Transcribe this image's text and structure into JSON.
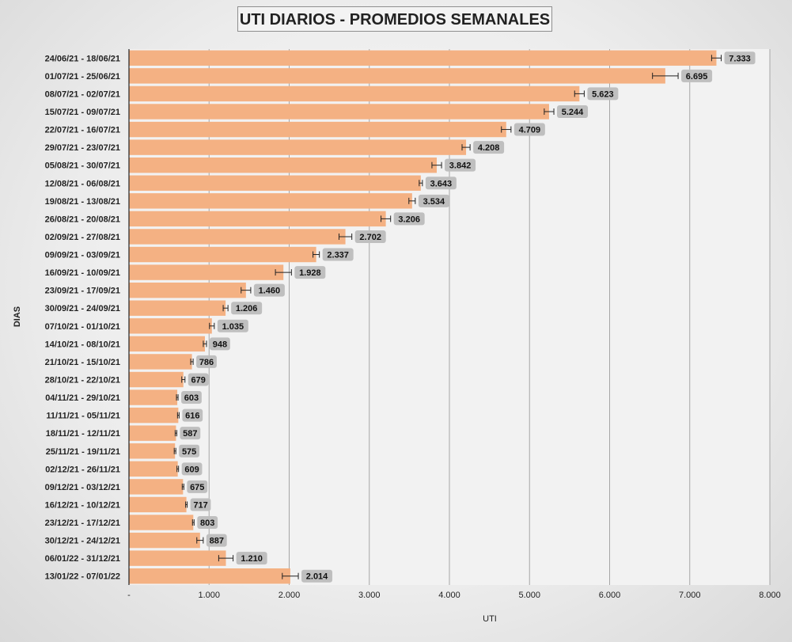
{
  "chart_data": {
    "type": "bar",
    "orientation": "horizontal",
    "title": "UTI DIARIOS - PROMEDIOS SEMANALES",
    "xlabel": "UTI",
    "ylabel": "DIAS",
    "xlim": [
      0,
      8000
    ],
    "x_ticks": [
      "-",
      "1.000",
      "2.000",
      "3.000",
      "4.000",
      "5.000",
      "6.000",
      "7.000",
      "8.000"
    ],
    "grid": true,
    "bar_color": "#f4b183",
    "label_bg_color": "#bfbfbf",
    "categories": [
      "24/06/21 - 18/06/21",
      "01/07/21 - 25/06/21",
      "08/07/21 - 02/07/21",
      "15/07/21 - 09/07/21",
      "22/07/21 - 16/07/21",
      "29/07/21 - 23/07/21",
      "05/08/21 - 30/07/21",
      "12/08/21 - 06/08/21",
      "19/08/21 - 13/08/21",
      "26/08/21 - 20/08/21",
      "02/09/21 - 27/08/21",
      "09/09/21 - 03/09/21",
      "16/09/21 - 10/09/21",
      "23/09/21 - 17/09/21",
      "30/09/21 - 24/09/21",
      "07/10/21 - 01/10/21",
      "14/10/21 - 08/10/21",
      "21/10/21 - 15/10/21",
      "28/10/21 - 22/10/21",
      "04/11/21 - 29/10/21",
      "11/11/21 - 05/11/21",
      "18/11/21 - 12/11/21",
      "25/11/21 - 19/11/21",
      "02/12/21 - 26/11/21",
      "09/12/21 - 03/12/21",
      "16/12/21 - 10/12/21",
      "23/12/21 - 17/12/21",
      "30/12/21 - 24/12/21",
      "06/01/22 - 31/12/21",
      "13/01/22 - 07/01/22"
    ],
    "values": [
      7333,
      6695,
      5623,
      5244,
      4709,
      4208,
      3842,
      3643,
      3534,
      3206,
      2702,
      2337,
      1928,
      1460,
      1206,
      1035,
      948,
      786,
      679,
      603,
      616,
      587,
      575,
      609,
      675,
      717,
      803,
      887,
      1210,
      2014
    ],
    "value_labels": [
      "7.333",
      "6.695",
      "5.623",
      "5.244",
      "4.709",
      "4.208",
      "3.842",
      "3.643",
      "3.534",
      "3.206",
      "2.702",
      "2.337",
      "1.928",
      "1.460",
      "1.206",
      "1.035",
      "948",
      "786",
      "679",
      "603",
      "616",
      "587",
      "575",
      "609",
      "675",
      "717",
      "803",
      "887",
      "1.210",
      "2.014"
    ],
    "error_bars": [
      60,
      160,
      60,
      60,
      60,
      50,
      60,
      20,
      40,
      60,
      80,
      40,
      100,
      60,
      30,
      30,
      20,
      15,
      20,
      10,
      10,
      10,
      10,
      10,
      10,
      10,
      10,
      40,
      90,
      100
    ]
  }
}
